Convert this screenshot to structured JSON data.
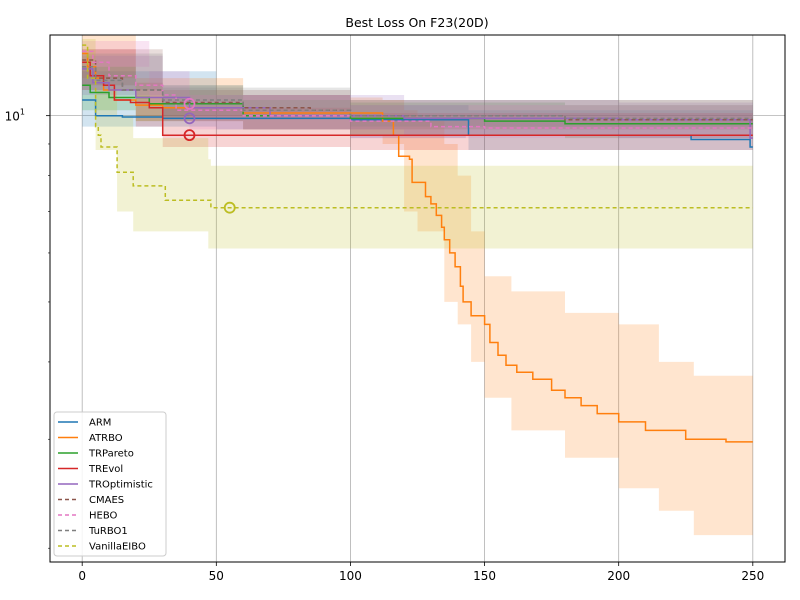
{
  "chart_data": {
    "type": "line",
    "title": "Best Loss On F23(20D)",
    "xlabel": "",
    "ylabel": "",
    "xlim": [
      -12,
      262
    ],
    "ylim": [
      1.9,
      13.5
    ],
    "yscale": "log",
    "x_ticks": [
      0,
      50,
      100,
      150,
      200,
      250
    ],
    "y_ticks": [
      {
        "value": 10,
        "label": "10^1"
      }
    ],
    "grid": true,
    "legend_position": "lower-left",
    "series": [
      {
        "name": "ARM",
        "color": "#1f77b4",
        "dash": "solid",
        "points": [
          [
            0,
            10.6
          ],
          [
            5,
            10.0
          ],
          [
            15,
            9.95
          ],
          [
            30,
            9.9
          ],
          [
            60,
            9.9
          ],
          [
            100,
            9.85
          ],
          [
            143,
            9.85
          ],
          [
            144,
            9.3
          ],
          [
            200,
            9.3
          ],
          [
            226,
            9.3
          ],
          [
            227,
            9.15
          ],
          [
            248,
            9.15
          ],
          [
            249,
            8.9
          ],
          [
            250,
            8.9
          ]
        ],
        "band": [
          [
            0,
            11.8,
            9.6
          ],
          [
            50,
            10.8,
            9.5
          ],
          [
            100,
            10.4,
            9.2
          ],
          [
            143,
            10.4,
            9.3
          ],
          [
            144,
            10.2,
            8.8
          ],
          [
            200,
            10.2,
            8.8
          ],
          [
            250,
            10.0,
            8.5
          ]
        ],
        "marker": null
      },
      {
        "name": "ATRBO",
        "color": "#ff7f0e",
        "dash": "solid",
        "points": [
          [
            0,
            12.6
          ],
          [
            2,
            12.0
          ],
          [
            5,
            11.5
          ],
          [
            8,
            11.0
          ],
          [
            12,
            10.6
          ],
          [
            20,
            10.4
          ],
          [
            30,
            10.3
          ],
          [
            60,
            10.1
          ],
          [
            100,
            10.1
          ],
          [
            112,
            9.8
          ],
          [
            116,
            9.3
          ],
          [
            118,
            8.6
          ],
          [
            122,
            8.5
          ],
          [
            123,
            7.8
          ],
          [
            126,
            7.8
          ],
          [
            128,
            7.4
          ],
          [
            130,
            7.2
          ],
          [
            132,
            6.9
          ],
          [
            134,
            6.6
          ],
          [
            135,
            6.3
          ],
          [
            137,
            6.0
          ],
          [
            139,
            5.7
          ],
          [
            141,
            5.3
          ],
          [
            142,
            5.0
          ],
          [
            145,
            4.75
          ],
          [
            150,
            4.6
          ],
          [
            152,
            4.3
          ],
          [
            155,
            4.1
          ],
          [
            158,
            3.95
          ],
          [
            162,
            3.85
          ],
          [
            168,
            3.75
          ],
          [
            175,
            3.6
          ],
          [
            180,
            3.5
          ],
          [
            186,
            3.4
          ],
          [
            192,
            3.3
          ],
          [
            200,
            3.2
          ],
          [
            210,
            3.1
          ],
          [
            220,
            3.1
          ],
          [
            225,
            3.0
          ],
          [
            240,
            2.97
          ],
          [
            250,
            2.97
          ]
        ],
        "band": [
          [
            0,
            13.5,
            11.5
          ],
          [
            20,
            11.5,
            9.8
          ],
          [
            60,
            10.8,
            9.5
          ],
          [
            100,
            10.7,
            9.3
          ],
          [
            112,
            10.6,
            9.0
          ],
          [
            120,
            10.2,
            7.0
          ],
          [
            125,
            9.8,
            6.5
          ],
          [
            135,
            9.0,
            5.0
          ],
          [
            140,
            8.0,
            4.6
          ],
          [
            145,
            6.5,
            4.0
          ],
          [
            150,
            5.5,
            3.5
          ],
          [
            160,
            5.2,
            3.1
          ],
          [
            180,
            4.8,
            2.8
          ],
          [
            200,
            4.6,
            2.5
          ],
          [
            215,
            4.0,
            2.3
          ],
          [
            228,
            3.8,
            2.1
          ],
          [
            250,
            3.8,
            2.1
          ]
        ],
        "marker": null
      },
      {
        "name": "TRPareto",
        "color": "#2ca02c",
        "dash": "solid",
        "points": [
          [
            0,
            11.2
          ],
          [
            3,
            10.9
          ],
          [
            10,
            10.7
          ],
          [
            25,
            10.45
          ],
          [
            60,
            10.0
          ],
          [
            100,
            9.9
          ],
          [
            150,
            9.8
          ],
          [
            180,
            9.7
          ],
          [
            250,
            9.7
          ]
        ],
        "band": [
          [
            0,
            12.0,
            10.2
          ],
          [
            20,
            11.2,
            9.8
          ],
          [
            60,
            10.6,
            9.5
          ],
          [
            100,
            10.5,
            9.3
          ],
          [
            180,
            10.4,
            9.2
          ],
          [
            250,
            10.3,
            9.2
          ]
        ],
        "marker": null
      },
      {
        "name": "TREvol",
        "color": "#d62728",
        "dash": "solid",
        "points": [
          [
            0,
            12.2
          ],
          [
            3,
            11.6
          ],
          [
            8,
            11.2
          ],
          [
            12,
            10.6
          ],
          [
            18,
            10.5
          ],
          [
            25,
            10.3
          ],
          [
            30,
            9.3
          ],
          [
            60,
            9.3
          ],
          [
            120,
            9.3
          ],
          [
            250,
            9.3
          ]
        ],
        "band": [
          [
            0,
            12.8,
            11.0
          ],
          [
            20,
            11.3,
            9.6
          ],
          [
            30,
            10.3,
            8.9
          ],
          [
            100,
            10.1,
            8.8
          ],
          [
            250,
            10.0,
            8.8
          ]
        ],
        "marker": {
          "x": 40,
          "y": 9.3
        }
      },
      {
        "name": "TROptimistic",
        "color": "#9467bd",
        "dash": "solid",
        "points": [
          [
            0,
            11.9
          ],
          [
            4,
            11.3
          ],
          [
            10,
            11.0
          ],
          [
            20,
            10.7
          ],
          [
            40,
            10.3
          ],
          [
            70,
            10.0
          ],
          [
            120,
            9.9
          ],
          [
            200,
            9.85
          ],
          [
            248,
            9.85
          ],
          [
            249,
            9.2
          ],
          [
            250,
            9.2
          ]
        ],
        "band": [
          [
            0,
            12.5,
            10.8
          ],
          [
            30,
            11.2,
            9.8
          ],
          [
            60,
            10.8,
            9.5
          ],
          [
            120,
            10.6,
            9.3
          ],
          [
            200,
            10.5,
            9.2
          ],
          [
            250,
            10.4,
            9.1
          ]
        ],
        "marker": {
          "x": 40,
          "y": 9.9
        }
      },
      {
        "name": "CMAES",
        "color": "#8c564b",
        "dash": "dashed",
        "points": [
          [
            0,
            12.3
          ],
          [
            5,
            11.5
          ],
          [
            15,
            11.0
          ],
          [
            30,
            10.5
          ],
          [
            60,
            10.3
          ],
          [
            85,
            10.2
          ],
          [
            100,
            10.0
          ],
          [
            180,
            9.85
          ],
          [
            250,
            9.85
          ]
        ],
        "band": [
          [
            0,
            12.8,
            11.2
          ],
          [
            30,
            11.0,
            9.9
          ],
          [
            100,
            10.6,
            9.5
          ],
          [
            250,
            10.4,
            9.4
          ]
        ],
        "marker": null
      },
      {
        "name": "HEBO",
        "color": "#e377c2",
        "dash": "dashed",
        "points": [
          [
            0,
            12.7
          ],
          [
            4,
            12.2
          ],
          [
            10,
            11.6
          ],
          [
            20,
            11.2
          ],
          [
            30,
            10.8
          ],
          [
            35,
            10.2
          ],
          [
            60,
            10.0
          ],
          [
            100,
            9.8
          ],
          [
            130,
            9.6
          ],
          [
            150,
            9.55
          ],
          [
            250,
            9.55
          ]
        ],
        "band": [
          [
            0,
            13.2,
            12.0
          ],
          [
            25,
            11.8,
            10.5
          ],
          [
            40,
            10.8,
            9.5
          ],
          [
            100,
            10.4,
            9.2
          ],
          [
            250,
            10.2,
            9.1
          ]
        ],
        "marker": {
          "x": 40,
          "y": 10.45
        }
      },
      {
        "name": "TuRBO1",
        "color": "#7f7f7f",
        "dash": "dashed",
        "points": [
          [
            0,
            12.0
          ],
          [
            5,
            11.4
          ],
          [
            15,
            11.0
          ],
          [
            30,
            10.6
          ],
          [
            60,
            10.2
          ],
          [
            100,
            10.0
          ],
          [
            180,
            9.9
          ],
          [
            250,
            9.9
          ]
        ],
        "band": [
          [
            0,
            12.6,
            11.0
          ],
          [
            30,
            11.1,
            10.0
          ],
          [
            100,
            10.6,
            9.6
          ],
          [
            250,
            10.4,
            9.5
          ]
        ],
        "marker": null
      },
      {
        "name": "VanillaEIBO",
        "color": "#bcbd22",
        "dash": "dashed",
        "points": [
          [
            0,
            13.0
          ],
          [
            2,
            11.5
          ],
          [
            5,
            9.6
          ],
          [
            6,
            9.3
          ],
          [
            7,
            8.9
          ],
          [
            12,
            8.9
          ],
          [
            13,
            8.1
          ],
          [
            18,
            8.1
          ],
          [
            19,
            7.7
          ],
          [
            30,
            7.7
          ],
          [
            31,
            7.3
          ],
          [
            47,
            7.3
          ],
          [
            48,
            7.1
          ],
          [
            250,
            7.1
          ]
        ],
        "band": [
          [
            0,
            13.3,
            12.0
          ],
          [
            5,
            11.0,
            8.8
          ],
          [
            13,
            10.0,
            7.0
          ],
          [
            19,
            9.2,
            6.5
          ],
          [
            47,
            8.5,
            6.1
          ],
          [
            48,
            8.3,
            6.1
          ],
          [
            250,
            8.3,
            6.1
          ]
        ],
        "marker": {
          "x": 55,
          "y": 7.1
        }
      }
    ]
  }
}
